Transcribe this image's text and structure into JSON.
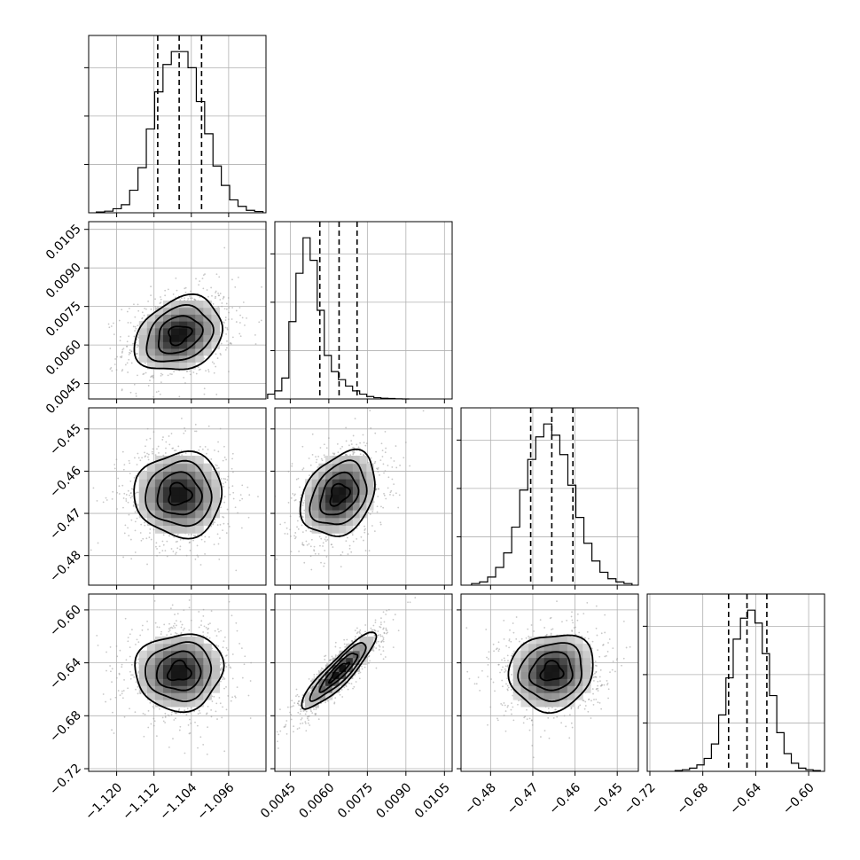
{
  "chart_data": {
    "type": "corner",
    "parameters": [
      {
        "key": "p0",
        "range": [
          -1.126,
          -1.088
        ],
        "ticks": [
          -1.12,
          -1.112,
          -1.104,
          -1.096
        ],
        "tick_labels": [
          "−1.120",
          "−1.112",
          "−1.104",
          "−1.096"
        ],
        "median": -1.1066,
        "q16": -1.1112,
        "q84": -1.1018,
        "hist": [
          0.005,
          0.01,
          0.025,
          0.05,
          0.14,
          0.28,
          0.52,
          0.75,
          0.92,
          1.0,
          1.0,
          0.9,
          0.69,
          0.49,
          0.29,
          0.17,
          0.08,
          0.04,
          0.015,
          0.008
        ]
      },
      {
        "key": "p1",
        "range": [
          0.0039,
          0.0108
        ],
        "ticks": [
          0.0045,
          0.006,
          0.0075,
          0.009,
          0.0105
        ],
        "tick_labels": [
          "0.0045",
          "0.0060",
          "0.0075",
          "0.0090",
          "0.0105"
        ],
        "median": 0.0064,
        "q16": 0.00565,
        "q84": 0.0071,
        "hist": [
          0.03,
          0.05,
          0.13,
          0.48,
          0.78,
          1.0,
          0.86,
          0.55,
          0.27,
          0.17,
          0.12,
          0.08,
          0.05,
          0.03,
          0.015,
          0.008,
          0.004,
          0.003,
          0.001,
          0.0
        ]
      },
      {
        "key": "p2",
        "range": [
          -0.487,
          -0.445
        ],
        "ticks": [
          -0.48,
          -0.47,
          -0.46,
          -0.45
        ],
        "tick_labels": [
          "−0.48",
          "−0.47",
          "−0.46",
          "−0.45"
        ],
        "median": -0.4655,
        "q16": -0.4705,
        "q84": -0.4605,
        "hist": [
          0.01,
          0.02,
          0.05,
          0.11,
          0.2,
          0.36,
          0.59,
          0.78,
          0.92,
          1.0,
          0.93,
          0.81,
          0.62,
          0.42,
          0.26,
          0.15,
          0.08,
          0.04,
          0.02,
          0.01
        ]
      },
      {
        "key": "p3",
        "range": [
          -0.722,
          -0.588
        ],
        "ticks": [
          -0.72,
          -0.68,
          -0.64,
          -0.6
        ],
        "tick_labels": [
          "−0.72",
          "−0.68",
          "−0.64",
          "−0.60"
        ],
        "median": -0.6466,
        "q16": -0.6605,
        "q84": -0.6316,
        "hist": [
          0.005,
          0.01,
          0.02,
          0.04,
          0.08,
          0.17,
          0.35,
          0.58,
          0.82,
          0.95,
          1.0,
          0.92,
          0.73,
          0.47,
          0.24,
          0.11,
          0.05,
          0.02,
          0.01,
          0.005
        ]
      }
    ],
    "correlations": {
      "1-0": 0.25,
      "2-0": 0.0,
      "2-1": 0.3,
      "3-0": 0.05,
      "3-1": 0.9,
      "3-2": 0.1
    },
    "contour_levels_sigma": [
      0.5,
      1.0,
      1.5,
      2.0
    ]
  }
}
